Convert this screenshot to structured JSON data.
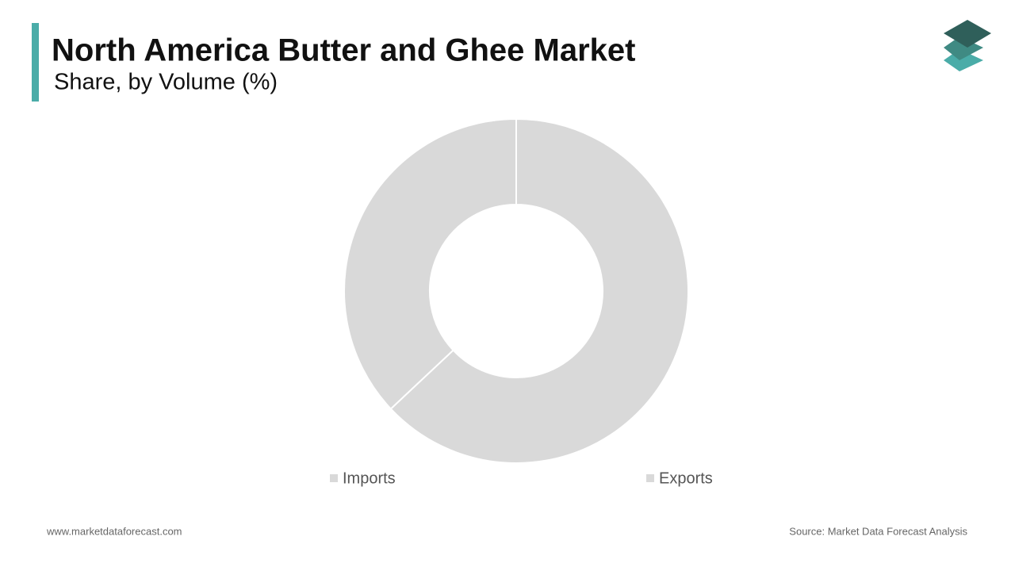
{
  "chart_data": {
    "type": "donut",
    "title": "North America Butter and Ghee Market",
    "subtitle": "Share, by Volume (%)",
    "categories": [
      "Imports",
      "Exports"
    ],
    "values": [
      63,
      37
    ],
    "colors": [
      "#d9d9d9",
      "#d9d9d9"
    ],
    "legend": "bottom"
  },
  "footer": {
    "website": "www.marketdataforecast.com",
    "source": "Source: Market Data Forecast Analysis"
  }
}
